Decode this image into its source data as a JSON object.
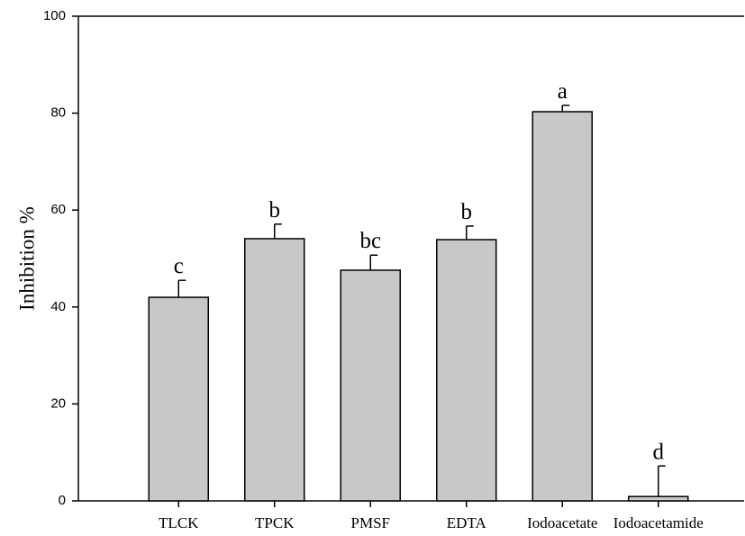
{
  "chart_data": {
    "type": "bar",
    "y_label": "Inhibition %",
    "categories": [
      "TLCK",
      "TPCK",
      "PMSF",
      "EDTA",
      "Iodoacetate",
      "Iodoacetamide"
    ],
    "values": [
      42.0,
      54.1,
      47.6,
      53.9,
      80.3,
      0.9
    ],
    "errors": [
      3.5,
      3.0,
      3.1,
      2.8,
      1.3,
      6.3
    ],
    "letters": [
      "c",
      "b",
      "bc",
      "b",
      "a",
      "d"
    ],
    "color": "#c8c8c8",
    "ylim": [
      0,
      100
    ],
    "yticks": [
      0,
      20,
      40,
      60,
      80,
      100
    ]
  }
}
